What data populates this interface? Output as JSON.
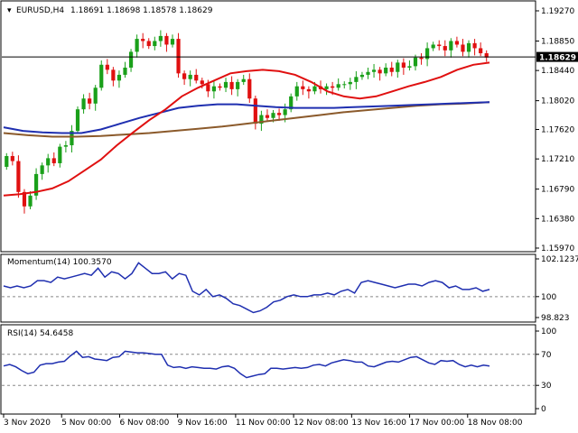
{
  "chart_data": [
    {
      "type": "candlestick",
      "symbol_label": "EURUSD,H4",
      "ohlc_label": "1.18691 1.18698 1.18578 1.18629",
      "current_price_label": "1.18629",
      "current_price": 1.18629,
      "ylim": [
        1.1597,
        1.1927
      ],
      "y_ticks": [
        "1.19270",
        "1.18850",
        "1.18440",
        "1.18020",
        "1.17620",
        "1.17210",
        "1.16790",
        "1.16380",
        "1.15970"
      ],
      "x_ticks": [
        "3 Nov 2020",
        "5 Nov 00:00",
        "6 Nov 08:00",
        "9 Nov 16:00",
        "11 Nov 00:00",
        "12 Nov 08:00",
        "13 Nov 16:00",
        "17 Nov 00:00",
        "18 Nov 08:00"
      ],
      "colors": {
        "up": "#1aa01a",
        "down": "#e01010",
        "price_line": "#000000",
        "ma_fast": "#e01010",
        "ma_mid": "#1f2fb0",
        "ma_slow": "#8b5a2b"
      },
      "candles_close": [
        1.1725,
        1.1718,
        1.1675,
        1.1655,
        1.167,
        1.17,
        1.1712,
        1.1722,
        1.1715,
        1.1738,
        1.174,
        1.176,
        1.179,
        1.1805,
        1.1798,
        1.182,
        1.1852,
        1.1845,
        1.183,
        1.1838,
        1.1848,
        1.187,
        1.1888,
        1.1885,
        1.1878,
        1.1885,
        1.1892,
        1.188,
        1.1888,
        1.184,
        1.1832,
        1.1838,
        1.183,
        1.1825,
        1.1815,
        1.1822,
        1.182,
        1.1828,
        1.1818,
        1.1828,
        1.1832,
        1.1805,
        1.177,
        1.1782,
        1.1778,
        1.1785,
        1.1782,
        1.179,
        1.1808,
        1.1822,
        1.1818,
        1.1815,
        1.1822,
        1.1818,
        1.1822,
        1.182,
        1.1825,
        1.1825,
        1.1828,
        1.1835,
        1.1838,
        1.1842,
        1.1845,
        1.184,
        1.1848,
        1.1842,
        1.1855,
        1.1848,
        1.185,
        1.1862,
        1.186,
        1.1875,
        1.188,
        1.1878,
        1.1872,
        1.1885,
        1.188,
        1.187,
        1.1882,
        1.1875,
        1.1868,
        1.1862
      ],
      "ma_fast": [
        1.167,
        1.1672,
        1.1675,
        1.168,
        1.169,
        1.1705,
        1.172,
        1.174,
        1.1758,
        1.1775,
        1.179,
        1.1808,
        1.182,
        1.183,
        1.184,
        1.1843,
        1.1845,
        1.1843,
        1.1838,
        1.1828,
        1.1815,
        1.1808,
        1.1805,
        1.1808,
        1.1815,
        1.1822,
        1.1828,
        1.1835,
        1.1845,
        1.1852,
        1.1855
      ],
      "ma_mid": [
        1.1765,
        1.176,
        1.1758,
        1.1757,
        1.1757,
        1.1762,
        1.177,
        1.1778,
        1.1785,
        1.1792,
        1.1795,
        1.1797,
        1.1797,
        1.1795,
        1.1793,
        1.1792,
        1.1792,
        1.1792,
        1.1793,
        1.1794,
        1.1795,
        1.1796,
        1.1797,
        1.1798,
        1.1799,
        1.18
      ],
      "ma_slow": [
        1.1757,
        1.1754,
        1.1752,
        1.1752,
        1.1753,
        1.1755,
        1.1757,
        1.176,
        1.1763,
        1.1766,
        1.177,
        1.1774,
        1.1778,
        1.1782,
        1.1786,
        1.1789,
        1.1792,
        1.1795,
        1.1797,
        1.1798,
        1.18
      ]
    },
    {
      "type": "line",
      "indicator_label": "Momentum(14) 100.3570",
      "ylim": [
        98.823,
        102.1237
      ],
      "y_ticks": [
        "102.1237",
        "100",
        "98.823"
      ],
      "reference_level": 100,
      "color": "#1f2fb0",
      "values": [
        100.6,
        100.5,
        100.6,
        100.5,
        100.6,
        100.9,
        100.9,
        100.8,
        101.1,
        101.0,
        101.1,
        101.2,
        101.3,
        101.2,
        101.6,
        101.1,
        101.4,
        101.3,
        101.0,
        101.3,
        101.9,
        101.6,
        101.3,
        101.3,
        101.4,
        101.0,
        101.3,
        101.2,
        100.3,
        100.1,
        100.4,
        100.0,
        100.1,
        99.9,
        99.6,
        99.5,
        99.3,
        99.1,
        99.2,
        99.4,
        99.7,
        99.8,
        100.0,
        100.1,
        100.0,
        100.0,
        100.1,
        100.1,
        100.2,
        100.1,
        100.3,
        100.4,
        100.2,
        100.8,
        100.9,
        100.8,
        100.7,
        100.6,
        100.5,
        100.6,
        100.7,
        100.7,
        100.6,
        100.8,
        100.9,
        100.8,
        100.5,
        100.6,
        100.4,
        100.4,
        100.5,
        100.3,
        100.4
      ]
    },
    {
      "type": "line",
      "indicator_label": "RSI(14) 54.6458",
      "ylim": [
        0,
        100
      ],
      "y_ticks": [
        "100",
        "70",
        "30",
        "0"
      ],
      "levels": [
        70,
        30
      ],
      "color": "#1f2fb0",
      "values": [
        55,
        57,
        54,
        49,
        45,
        47,
        56,
        58,
        58,
        60,
        61,
        68,
        74,
        66,
        67,
        64,
        63,
        62,
        66,
        67,
        74,
        73,
        72,
        72,
        71,
        70,
        70,
        56,
        53,
        54,
        52,
        54,
        53,
        52,
        52,
        51,
        54,
        55,
        52,
        45,
        40,
        42,
        44,
        45,
        52,
        52,
        51,
        52,
        53,
        52,
        53,
        56,
        57,
        55,
        59,
        61,
        63,
        62,
        60,
        60,
        55,
        54,
        57,
        60,
        61,
        60,
        63,
        66,
        67,
        63,
        59,
        57,
        62,
        61,
        62,
        57,
        54,
        56,
        54,
        56,
        55
      ]
    }
  ]
}
